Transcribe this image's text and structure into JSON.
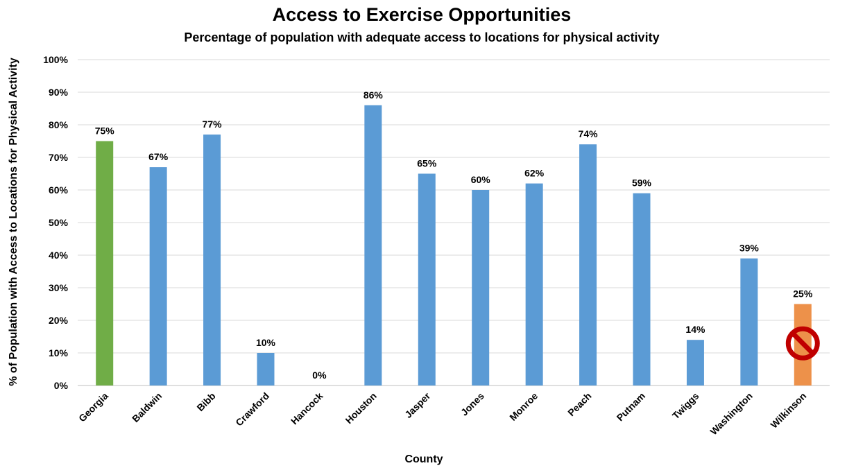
{
  "chart_data": {
    "type": "bar",
    "title": "Access to Exercise Opportunities",
    "subtitle": "Percentage of population with adequate access to locations for physical activity",
    "xlabel": "County",
    "ylabel": "% of Population with Access to Locations for Physical Activity",
    "categories": [
      "Georgia",
      "Baldwin",
      "Bibb",
      "Crawford",
      "Hancock",
      "Houston",
      "Jasper",
      "Jones",
      "Monroe",
      "Peach",
      "Putnam",
      "Twiggs",
      "Washington",
      "Wilkinson"
    ],
    "values": [
      75,
      67,
      77,
      10,
      0,
      86,
      65,
      60,
      62,
      74,
      59,
      14,
      39,
      25
    ],
    "value_labels": [
      "75%",
      "67%",
      "77%",
      "10%",
      "0%",
      "86%",
      "65%",
      "60%",
      "62%",
      "74%",
      "59%",
      "14%",
      "39%",
      "25%"
    ],
    "ylim": [
      0,
      100
    ],
    "yticks": [
      0,
      10,
      20,
      30,
      40,
      50,
      60,
      70,
      80,
      90,
      100
    ],
    "ytick_labels": [
      "0%",
      "10%",
      "20%",
      "30%",
      "40%",
      "50%",
      "60%",
      "70%",
      "80%",
      "90%",
      "100%"
    ],
    "grid": true,
    "legend": "none",
    "colors": {
      "default": "#5b9bd5",
      "Georgia": "#70ad47",
      "Wilkinson": "#ed914a",
      "no_symbol": "#c00000"
    },
    "annotations": [
      {
        "category": "Wilkinson",
        "icon": "no-symbol-icon"
      }
    ]
  }
}
